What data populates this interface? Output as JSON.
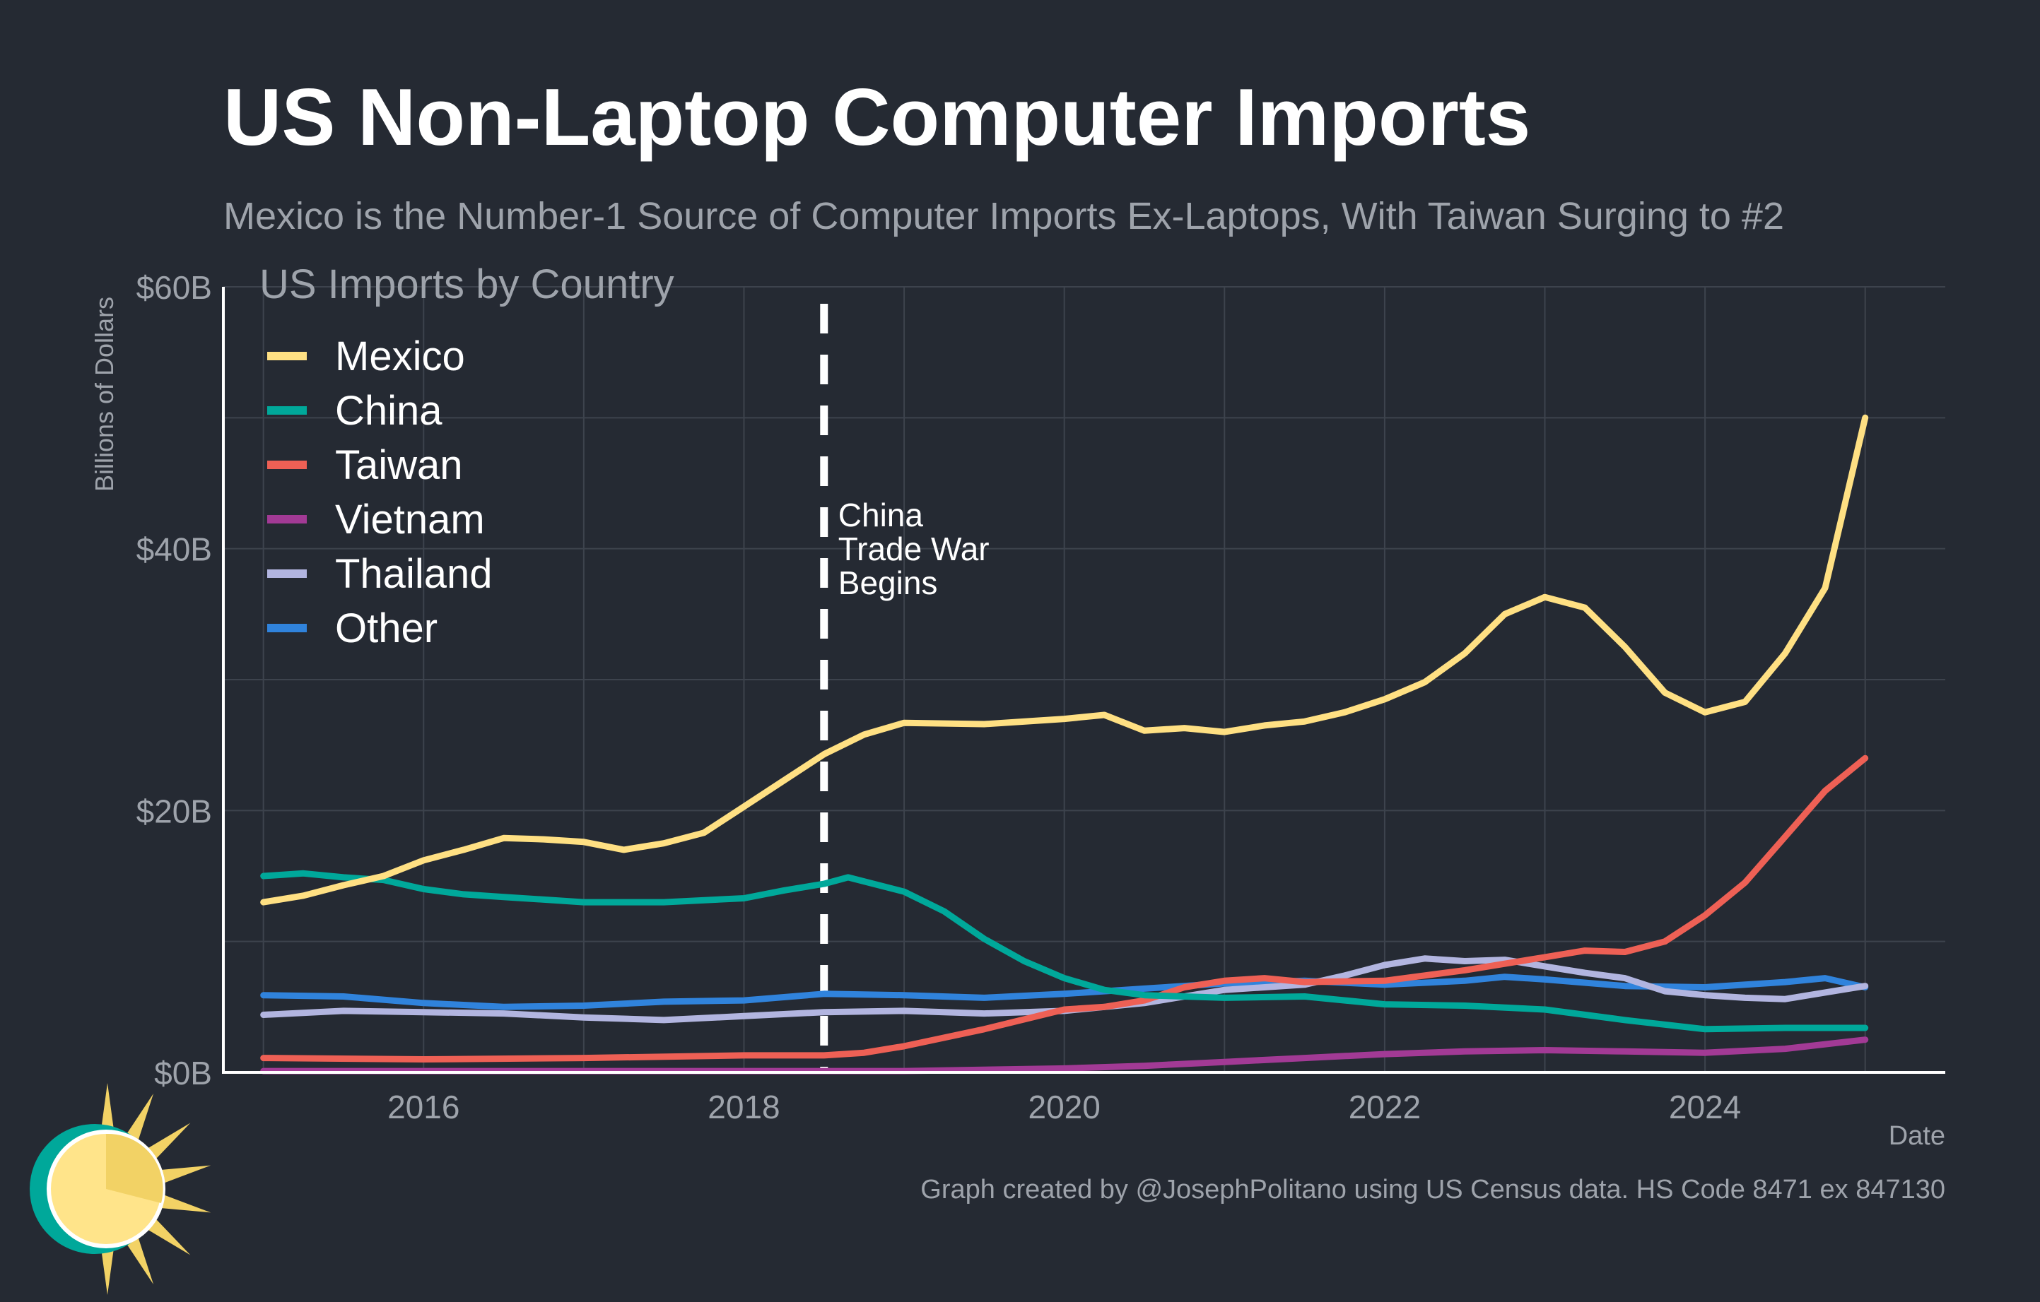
{
  "title": "US Non-Laptop Computer Imports",
  "subtitle": "Mexico is the Number-1 Source of Computer Imports Ex-Laptops, With Taiwan Surging to #2",
  "credit": "Graph created by @JosephPolitano using US Census data. HS Code 8471 ex 847130",
  "colors": {
    "background": "#252a33",
    "grid": "#3d434d",
    "axis": "#ffffff",
    "muted_text": "#9ea3ab"
  },
  "chart_data": {
    "type": "line",
    "legend_title": "US Imports by Country",
    "legend_placement": "top-left",
    "xlabel": "Date",
    "ylabel": "Billions of Dollars",
    "xlim": [
      2014.75,
      2025.5
    ],
    "ylim": [
      0,
      60
    ],
    "x_ticks": [
      2016,
      2018,
      2020,
      2022,
      2024
    ],
    "x_tick_labels": [
      "2016",
      "2018",
      "2020",
      "2022",
      "2024"
    ],
    "y_ticks": [
      0,
      20,
      40,
      60
    ],
    "y_tick_labels": [
      "$0B",
      "$20B",
      "$40B",
      "$60B"
    ],
    "grid": true,
    "annotation": {
      "x": 2018.5,
      "lines": [
        "China",
        "Trade War",
        "Begins"
      ],
      "style": "dashed-vertical"
    },
    "series": [
      {
        "name": "Mexico",
        "color": "#ffe083",
        "points": [
          [
            2015.0,
            13.0
          ],
          [
            2015.25,
            13.5
          ],
          [
            2015.5,
            14.3
          ],
          [
            2015.75,
            15.0
          ],
          [
            2016.0,
            16.2
          ],
          [
            2016.25,
            17.0
          ],
          [
            2016.5,
            17.9
          ],
          [
            2016.75,
            17.8
          ],
          [
            2017.0,
            17.6
          ],
          [
            2017.25,
            17.0
          ],
          [
            2017.5,
            17.5
          ],
          [
            2017.75,
            18.3
          ],
          [
            2018.0,
            20.3
          ],
          [
            2018.25,
            22.3
          ],
          [
            2018.5,
            24.3
          ],
          [
            2018.75,
            25.8
          ],
          [
            2019.0,
            26.7
          ],
          [
            2019.5,
            26.6
          ],
          [
            2020.0,
            27.0
          ],
          [
            2020.25,
            27.3
          ],
          [
            2020.5,
            26.1
          ],
          [
            2020.75,
            26.3
          ],
          [
            2021.0,
            26.0
          ],
          [
            2021.25,
            26.5
          ],
          [
            2021.5,
            26.8
          ],
          [
            2021.75,
            27.5
          ],
          [
            2022.0,
            28.5
          ],
          [
            2022.25,
            29.8
          ],
          [
            2022.5,
            32.0
          ],
          [
            2022.75,
            35.0
          ],
          [
            2023.0,
            36.3
          ],
          [
            2023.25,
            35.5
          ],
          [
            2023.5,
            32.5
          ],
          [
            2023.75,
            29.0
          ],
          [
            2024.0,
            27.5
          ],
          [
            2024.25,
            28.3
          ],
          [
            2024.5,
            32.0
          ],
          [
            2024.75,
            37.0
          ],
          [
            2025.0,
            50.0
          ]
        ]
      },
      {
        "name": "China",
        "color": "#00a89a",
        "points": [
          [
            2015.0,
            15.0
          ],
          [
            2015.25,
            15.2
          ],
          [
            2015.5,
            14.9
          ],
          [
            2015.75,
            14.7
          ],
          [
            2016.0,
            14.0
          ],
          [
            2016.25,
            13.6
          ],
          [
            2016.5,
            13.4
          ],
          [
            2017.0,
            13.0
          ],
          [
            2017.5,
            13.0
          ],
          [
            2018.0,
            13.3
          ],
          [
            2018.25,
            13.9
          ],
          [
            2018.5,
            14.4
          ],
          [
            2018.65,
            14.9
          ],
          [
            2019.0,
            13.8
          ],
          [
            2019.25,
            12.3
          ],
          [
            2019.5,
            10.2
          ],
          [
            2019.75,
            8.5
          ],
          [
            2020.0,
            7.2
          ],
          [
            2020.25,
            6.3
          ],
          [
            2020.5,
            5.9
          ],
          [
            2021.0,
            5.7
          ],
          [
            2021.5,
            5.8
          ],
          [
            2022.0,
            5.2
          ],
          [
            2022.5,
            5.1
          ],
          [
            2023.0,
            4.8
          ],
          [
            2023.5,
            4.0
          ],
          [
            2024.0,
            3.3
          ],
          [
            2024.5,
            3.4
          ],
          [
            2025.0,
            3.4
          ]
        ]
      },
      {
        "name": "Taiwan",
        "color": "#ee6055",
        "points": [
          [
            2015.0,
            1.1
          ],
          [
            2016.0,
            1.0
          ],
          [
            2017.0,
            1.1
          ],
          [
            2018.0,
            1.3
          ],
          [
            2018.5,
            1.3
          ],
          [
            2018.75,
            1.5
          ],
          [
            2019.0,
            2.0
          ],
          [
            2019.5,
            3.3
          ],
          [
            2020.0,
            4.8
          ],
          [
            2020.25,
            5.0
          ],
          [
            2020.5,
            5.5
          ],
          [
            2020.75,
            6.5
          ],
          [
            2021.0,
            7.0
          ],
          [
            2021.25,
            7.2
          ],
          [
            2021.5,
            6.9
          ],
          [
            2022.0,
            7.0
          ],
          [
            2022.5,
            7.8
          ],
          [
            2023.0,
            8.8
          ],
          [
            2023.25,
            9.3
          ],
          [
            2023.5,
            9.2
          ],
          [
            2023.75,
            10.0
          ],
          [
            2024.0,
            12.0
          ],
          [
            2024.25,
            14.5
          ],
          [
            2024.5,
            18.0
          ],
          [
            2024.75,
            21.5
          ],
          [
            2025.0,
            24.0
          ]
        ]
      },
      {
        "name": "Vietnam",
        "color": "#a23a95",
        "points": [
          [
            2015.0,
            0.1
          ],
          [
            2018.0,
            0.1
          ],
          [
            2019.0,
            0.1
          ],
          [
            2020.0,
            0.3
          ],
          [
            2020.5,
            0.5
          ],
          [
            2021.0,
            0.8
          ],
          [
            2021.5,
            1.1
          ],
          [
            2022.0,
            1.4
          ],
          [
            2022.5,
            1.6
          ],
          [
            2023.0,
            1.7
          ],
          [
            2023.5,
            1.6
          ],
          [
            2024.0,
            1.5
          ],
          [
            2024.5,
            1.8
          ],
          [
            2025.0,
            2.5
          ]
        ]
      },
      {
        "name": "Thailand",
        "color": "#b2b5e0",
        "points": [
          [
            2015.0,
            4.4
          ],
          [
            2015.5,
            4.7
          ],
          [
            2016.0,
            4.6
          ],
          [
            2016.5,
            4.5
          ],
          [
            2017.0,
            4.2
          ],
          [
            2017.5,
            4.0
          ],
          [
            2018.0,
            4.3
          ],
          [
            2018.5,
            4.6
          ],
          [
            2019.0,
            4.7
          ],
          [
            2019.5,
            4.5
          ],
          [
            2020.0,
            4.7
          ],
          [
            2020.5,
            5.3
          ],
          [
            2021.0,
            6.3
          ],
          [
            2021.5,
            6.7
          ],
          [
            2021.75,
            7.4
          ],
          [
            2022.0,
            8.2
          ],
          [
            2022.25,
            8.7
          ],
          [
            2022.5,
            8.5
          ],
          [
            2022.75,
            8.6
          ],
          [
            2023.0,
            8.1
          ],
          [
            2023.25,
            7.6
          ],
          [
            2023.5,
            7.2
          ],
          [
            2023.75,
            6.2
          ],
          [
            2024.0,
            5.9
          ],
          [
            2024.25,
            5.7
          ],
          [
            2024.5,
            5.6
          ],
          [
            2024.75,
            6.1
          ],
          [
            2025.0,
            6.6
          ]
        ]
      },
      {
        "name": "Other",
        "color": "#3083dc",
        "points": [
          [
            2015.0,
            5.9
          ],
          [
            2015.5,
            5.8
          ],
          [
            2016.0,
            5.3
          ],
          [
            2016.5,
            5.0
          ],
          [
            2017.0,
            5.1
          ],
          [
            2017.5,
            5.4
          ],
          [
            2018.0,
            5.5
          ],
          [
            2018.5,
            6.0
          ],
          [
            2019.0,
            5.9
          ],
          [
            2019.5,
            5.7
          ],
          [
            2020.0,
            6.0
          ],
          [
            2020.5,
            6.4
          ],
          [
            2021.0,
            6.8
          ],
          [
            2021.5,
            7.0
          ],
          [
            2022.0,
            6.7
          ],
          [
            2022.5,
            7.0
          ],
          [
            2022.75,
            7.3
          ],
          [
            2023.0,
            7.1
          ],
          [
            2023.5,
            6.6
          ],
          [
            2024.0,
            6.5
          ],
          [
            2024.5,
            6.9
          ],
          [
            2024.75,
            7.2
          ],
          [
            2025.0,
            6.5
          ]
        ]
      }
    ]
  }
}
